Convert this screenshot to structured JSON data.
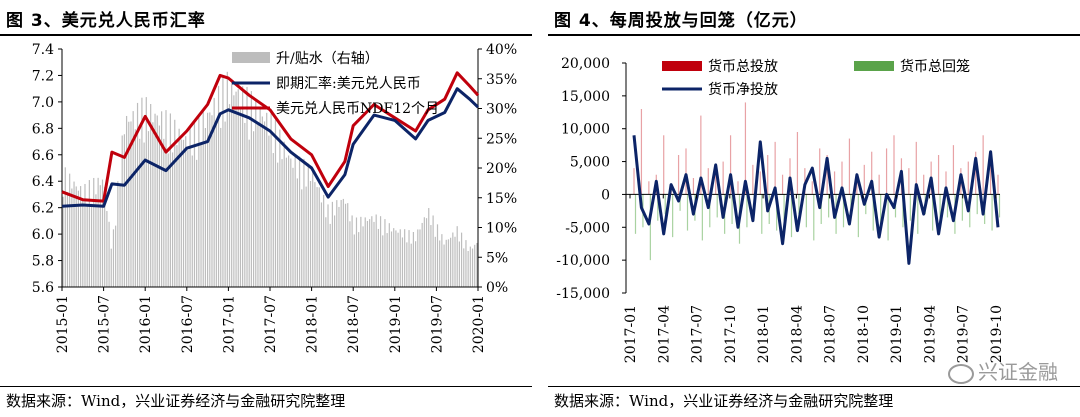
{
  "left": {
    "title": "图 3、美元兑人民币汇率",
    "source": "数据来源：Wind，兴业证券经济与金融研究院整理"
  },
  "right": {
    "title": "图 4、每周投放与回笼（亿元）",
    "source": "数据来源：Wind，兴业证券经济与金融研究院整理"
  },
  "watermark": "兴证金融",
  "colors": {
    "red": "#c0000c",
    "navy": "#0c2467",
    "gray": "#bdbdbd",
    "green": "#5aa34a"
  },
  "chart_data": [
    {
      "type": "line",
      "title": "图 3、美元兑人民币汇率",
      "y_left_ticks": [
        "5.6",
        "5.8",
        "6.0",
        "6.2",
        "6.4",
        "6.6",
        "6.8",
        "7.0",
        "7.2",
        "7.4"
      ],
      "ylim_left": [
        5.6,
        7.4
      ],
      "y_right_ticks": [
        "0%",
        "5%",
        "10%",
        "15%",
        "20%",
        "25%",
        "30%",
        "35%",
        "40%"
      ],
      "ylim_right": [
        0,
        40
      ],
      "x_ticks": [
        "2015-01",
        "2015-07",
        "2016-01",
        "2016-07",
        "2017-01",
        "2017-07",
        "2018-01",
        "2018-07",
        "2019-01",
        "2019-07",
        "2020-01"
      ],
      "x": [
        2015.0,
        2015.25,
        2015.5,
        2015.6,
        2015.75,
        2016.0,
        2016.25,
        2016.5,
        2016.75,
        2016.9,
        2017.0,
        2017.25,
        2017.5,
        2017.75,
        2018.0,
        2018.2,
        2018.4,
        2018.5,
        2018.75,
        2019.0,
        2019.25,
        2019.4,
        2019.6,
        2019.75,
        2019.9,
        2020.0
      ],
      "series": [
        {
          "name": "升/贴水（右轴）",
          "axis": "right",
          "style": "bar",
          "values": [
            18,
            15,
            17,
            6,
            26,
            28,
            26,
            23,
            27,
            30,
            32,
            29,
            26,
            20,
            18,
            12,
            14,
            10,
            11,
            9,
            8,
            12,
            7,
            9,
            6,
            7
          ]
        },
        {
          "name": "即期汇率:美元兑人民币",
          "axis": "left",
          "style": "line",
          "values": [
            6.21,
            6.22,
            6.21,
            6.38,
            6.37,
            6.56,
            6.48,
            6.65,
            6.7,
            6.91,
            6.94,
            6.88,
            6.78,
            6.62,
            6.5,
            6.28,
            6.45,
            6.68,
            6.9,
            6.86,
            6.72,
            6.86,
            6.92,
            7.1,
            7.02,
            6.96
          ]
        },
        {
          "name": "美元兑人民币NDF12个月",
          "axis": "left",
          "style": "line",
          "values": [
            6.32,
            6.26,
            6.25,
            6.62,
            6.58,
            6.89,
            6.62,
            6.78,
            6.98,
            7.2,
            7.18,
            7.05,
            6.94,
            6.72,
            6.6,
            6.36,
            6.55,
            6.82,
            6.98,
            6.88,
            6.78,
            6.94,
            7.02,
            7.22,
            7.12,
            7.05
          ]
        }
      ],
      "legend": [
        "升/贴水（右轴）",
        "即期汇率:美元兑人民币",
        "美元兑人民币NDF12个月"
      ],
      "legend_position": "top-right"
    },
    {
      "type": "line",
      "title": "图 4、每周投放与回笼（亿元）",
      "y_ticks": [
        "20,000",
        "15,000",
        "10,000",
        "5,000",
        "0",
        "-5,000",
        "-10,000",
        "-15,000"
      ],
      "ylim": [
        -15000,
        20000
      ],
      "x_ticks": [
        "2017-01",
        "2017-04",
        "2017-07",
        "2017-10",
        "2018-01",
        "2018-04",
        "2018-07",
        "2018-10",
        "2019-01",
        "2019-04",
        "2019-07",
        "2019-10"
      ],
      "series": [
        {
          "name": "货币总投放",
          "style": "bar",
          "values": [
            4000,
            13000,
            2000,
            3000,
            9000,
            1500,
            6000,
            7000,
            2500,
            12000,
            4000,
            3000,
            5000,
            9000,
            2000,
            14000,
            4500,
            3500,
            6000,
            8000,
            3000,
            5500,
            9500,
            4000,
            2000,
            7000,
            6000,
            3500,
            5000,
            8500,
            2500,
            4500,
            6500,
            3000,
            7000,
            9000,
            5500,
            4000,
            8000,
            3000,
            5000,
            6000,
            3500,
            7500,
            4000,
            5000,
            6500,
            9000,
            4500,
            3000
          ]
        },
        {
          "name": "货币总回笼",
          "style": "bar",
          "values": [
            -6000,
            -5000,
            -10000,
            -4000,
            -3000,
            -6500,
            -2500,
            -5500,
            -4000,
            -7000,
            -5000,
            -3500,
            -6000,
            -4500,
            -7500,
            -5000,
            -3000,
            -6000,
            -4500,
            -5500,
            -4000,
            -6500,
            -3000,
            -5000,
            -7000,
            -4500,
            -3500,
            -6000,
            -5000,
            -4000,
            -6500,
            -3000,
            -5500,
            -4500,
            -7000,
            -3500,
            -5000,
            -4000,
            -6000,
            -3000,
            -5500,
            -4500,
            -3500,
            -6000,
            -4000,
            -5000,
            -3000,
            -4500,
            -5500,
            -3500
          ]
        },
        {
          "name": "货币净投放",
          "style": "line",
          "values": [
            9000,
            -2000,
            -4500,
            2000,
            -6000,
            1500,
            -1000,
            3000,
            -3000,
            2500,
            -2000,
            4500,
            -3500,
            3000,
            -5000,
            2000,
            -4000,
            8000,
            -2500,
            1000,
            -7500,
            2500,
            -5500,
            1500,
            4000,
            -2000,
            5500,
            -3500,
            1000,
            -4500,
            3000,
            -1500,
            2000,
            -6500,
            0,
            -2000,
            3500,
            -10500,
            1500,
            -3000,
            2500,
            -6000,
            1000,
            -4000,
            3000,
            -2500,
            5500,
            -3000,
            6500,
            -5000
          ],
          "x_start": "2017-01",
          "x_end": "2019-12"
        }
      ],
      "legend": [
        "货币总投放",
        "货币总回笼",
        "货币净投放"
      ],
      "legend_position": "top"
    }
  ]
}
